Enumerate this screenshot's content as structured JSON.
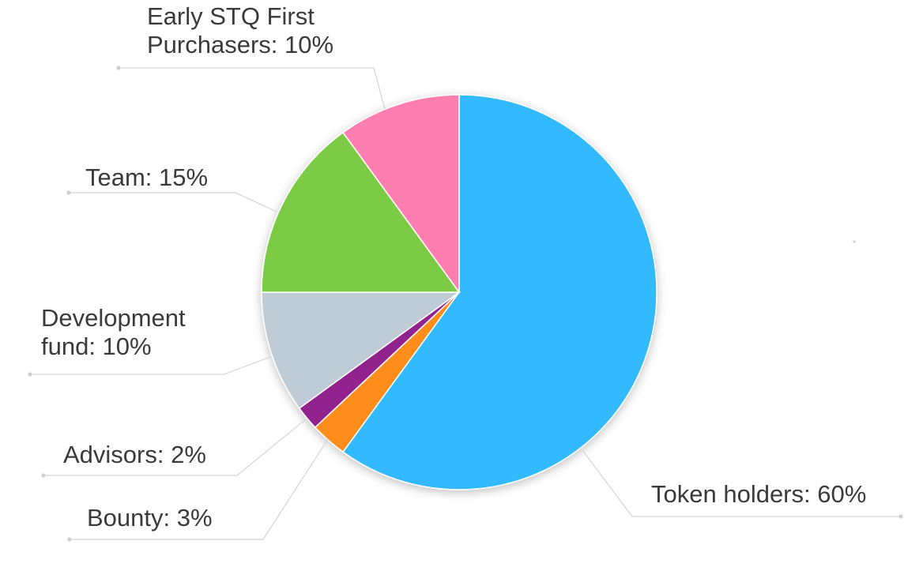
{
  "chart_data": {
    "type": "pie",
    "slices": [
      {
        "key": "token",
        "label_lines": [
          "Token holders: 60%"
        ],
        "value": 60,
        "color": "#31b9fe"
      },
      {
        "key": "bounty",
        "label_lines": [
          "Bounty: 3%"
        ],
        "value": 3,
        "color": "#fe8d1c"
      },
      {
        "key": "advisors",
        "label_lines": [
          "Advisors: 2%"
        ],
        "value": 2,
        "color": "#92248d"
      },
      {
        "key": "devfund",
        "label_lines": [
          "Development",
          "fund: 10%"
        ],
        "value": 10,
        "color": "#bfcbd5"
      },
      {
        "key": "team",
        "label_lines": [
          "Team: 15%"
        ],
        "value": 15,
        "color": "#7ccb45"
      },
      {
        "key": "early",
        "label_lines": [
          "Early STQ First",
          "Purchasers: 10%"
        ],
        "value": 10,
        "color": "#fe7eb0"
      }
    ],
    "start_angle": "12 o'clock",
    "direction": "clockwise",
    "legend": "none"
  }
}
